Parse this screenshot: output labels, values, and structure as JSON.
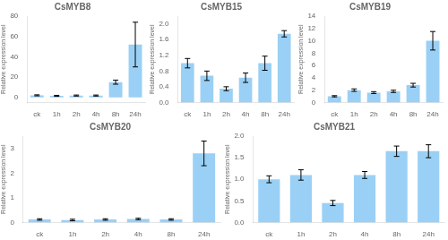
{
  "chart_data": [
    {
      "type": "bar",
      "title": "CsMYB8",
      "ylabel": "Relative expression level",
      "categories": [
        "ck",
        "1h",
        "2h",
        "4h",
        "8h",
        "24h"
      ],
      "values": [
        2.0,
        1.5,
        1.8,
        1.8,
        15.0,
        52.0
      ],
      "errors": [
        0.5,
        0.5,
        0.5,
        0.5,
        2.0,
        22.0
      ],
      "ylim": [
        -5,
        80
      ],
      "yticks": [
        0,
        20,
        40,
        60,
        80
      ],
      "grid": false
    },
    {
      "type": "bar",
      "title": "CsMYB15",
      "ylabel": "Relative expression level",
      "categories": [
        "ck",
        "1h",
        "2h",
        "4h",
        "8h",
        "24h"
      ],
      "values": [
        1.0,
        0.68,
        0.35,
        0.63,
        1.0,
        1.75
      ],
      "errors": [
        0.12,
        0.12,
        0.05,
        0.12,
        0.18,
        0.08
      ],
      "ylim": [
        0.0,
        2.2
      ],
      "yticks": [
        {
          "value": 0.0,
          "label": "0.0"
        },
        0.4,
        0.8,
        1.2,
        1.6,
        {
          "value": 2.0,
          "label": "2.0"
        }
      ],
      "grid": false
    },
    {
      "type": "bar",
      "title": "CsMYB19",
      "ylabel": "Relative expression level",
      "categories": [
        "ck",
        "1h",
        "2h",
        "4h",
        "8h",
        "24h"
      ],
      "values": [
        1.0,
        2.0,
        1.6,
        1.8,
        2.8,
        10.0
      ],
      "errors": [
        0.1,
        0.2,
        0.15,
        0.18,
        0.3,
        1.5
      ],
      "ylim": [
        0,
        14
      ],
      "yticks": [
        0,
        2,
        4,
        6,
        8,
        10,
        12,
        14
      ],
      "grid": false
    },
    {
      "type": "bar",
      "title": "CsMYB20",
      "ylabel": "Relative expression level",
      "categories": [
        "ck",
        "1h",
        "2h",
        "4h",
        "8h",
        "24h"
      ],
      "values": [
        0.12,
        0.1,
        0.12,
        0.14,
        0.12,
        2.8
      ],
      "errors": [
        0.03,
        0.03,
        0.03,
        0.03,
        0.03,
        0.5
      ],
      "ylim": [
        0,
        3.5
      ],
      "yticks": [
        0,
        1,
        2,
        3
      ],
      "grid": false
    },
    {
      "type": "bar",
      "title": "CsMYB21",
      "ylabel": "Relative expression level",
      "categories": [
        "ck",
        "1h",
        "2h",
        "4h",
        "8h",
        "24h"
      ],
      "values": [
        1.0,
        1.1,
        0.45,
        1.1,
        1.65,
        1.65
      ],
      "errors": [
        0.08,
        0.12,
        0.06,
        0.08,
        0.12,
        0.15
      ],
      "ylim": [
        0.0,
        2.0
      ],
      "yticks": [
        {
          "value": 0.0,
          "label": "0.0"
        },
        0.5,
        {
          "value": 1.0,
          "label": "1.0"
        },
        1.5,
        {
          "value": 2.0,
          "label": "2.0"
        }
      ],
      "grid": false
    }
  ]
}
